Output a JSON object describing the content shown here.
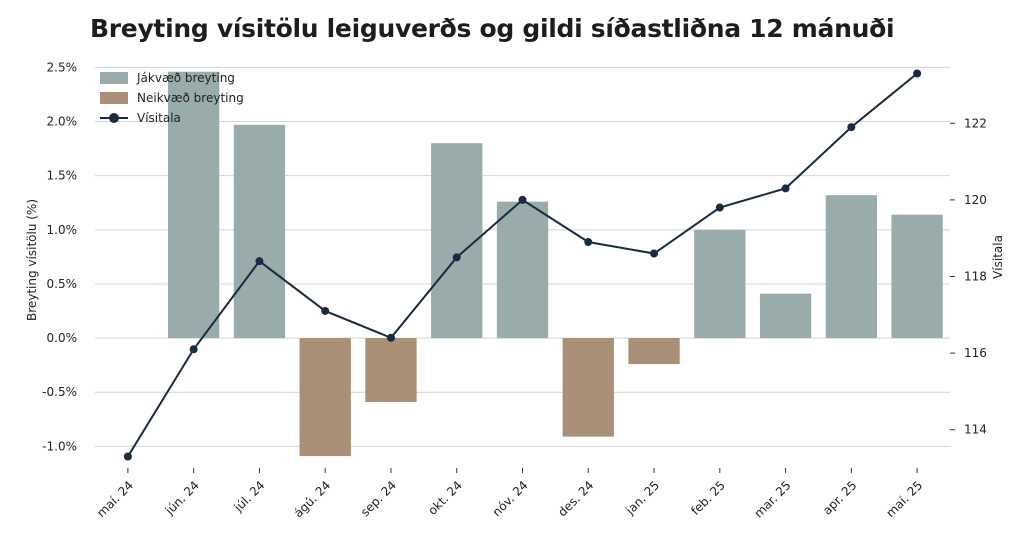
{
  "chart_data": {
    "type": "bar",
    "title": "Breyting vísitölu leiguverðs og gildi síðastliðna 12 mánuði",
    "categories": [
      "maí. 24",
      "jún. 24",
      "júl. 24",
      "ágú. 24",
      "sep. 24",
      "okt. 24",
      "nóv. 24",
      "des. 24",
      "jan. 25",
      "feb. 25",
      "mar. 25",
      "apr. 25",
      "maí. 25"
    ],
    "series": [
      {
        "name": "Breyting",
        "kind": "bar",
        "axis": "left",
        "values": [
          null,
          2.46,
          1.97,
          -1.09,
          -0.59,
          1.8,
          1.26,
          -0.91,
          -0.24,
          1.0,
          0.41,
          1.32,
          1.14
        ]
      },
      {
        "name": "Vísitala",
        "kind": "line",
        "axis": "right",
        "values": [
          113.3,
          116.1,
          118.4,
          117.1,
          116.4,
          118.5,
          120.0,
          118.9,
          118.6,
          119.8,
          120.3,
          121.9,
          123.3
        ]
      }
    ],
    "ylabel": "Breyting vísitölu (%)",
    "y2label": "Vísitala",
    "ylim": [
      -1.2,
      2.55
    ],
    "y2lim": [
      113.0,
      123.6
    ],
    "yticks": [
      "-1.0%",
      "-0.5%",
      "0.0%",
      "0.5%",
      "1.0%",
      "1.5%",
      "2.0%",
      "2.5%"
    ],
    "ytick_values": [
      -1.0,
      -0.5,
      0.0,
      0.5,
      1.0,
      1.5,
      2.0,
      2.5
    ],
    "y2ticks": [
      "114",
      "116",
      "118",
      "120",
      "122"
    ],
    "y2tick_values": [
      114,
      116,
      118,
      120,
      122
    ],
    "legend": [
      {
        "label": "Jákvæð breyting",
        "type": "bar-positive"
      },
      {
        "label": "Neikvæð breyting",
        "type": "bar-negative"
      },
      {
        "label": "Vísitala",
        "type": "line"
      }
    ],
    "legend_position": "top-left",
    "grid": true,
    "colors": {
      "positive": "#9aabab",
      "negative": "#a88f76",
      "line": "#1b2a41",
      "grid": "#d4d4d4"
    }
  }
}
